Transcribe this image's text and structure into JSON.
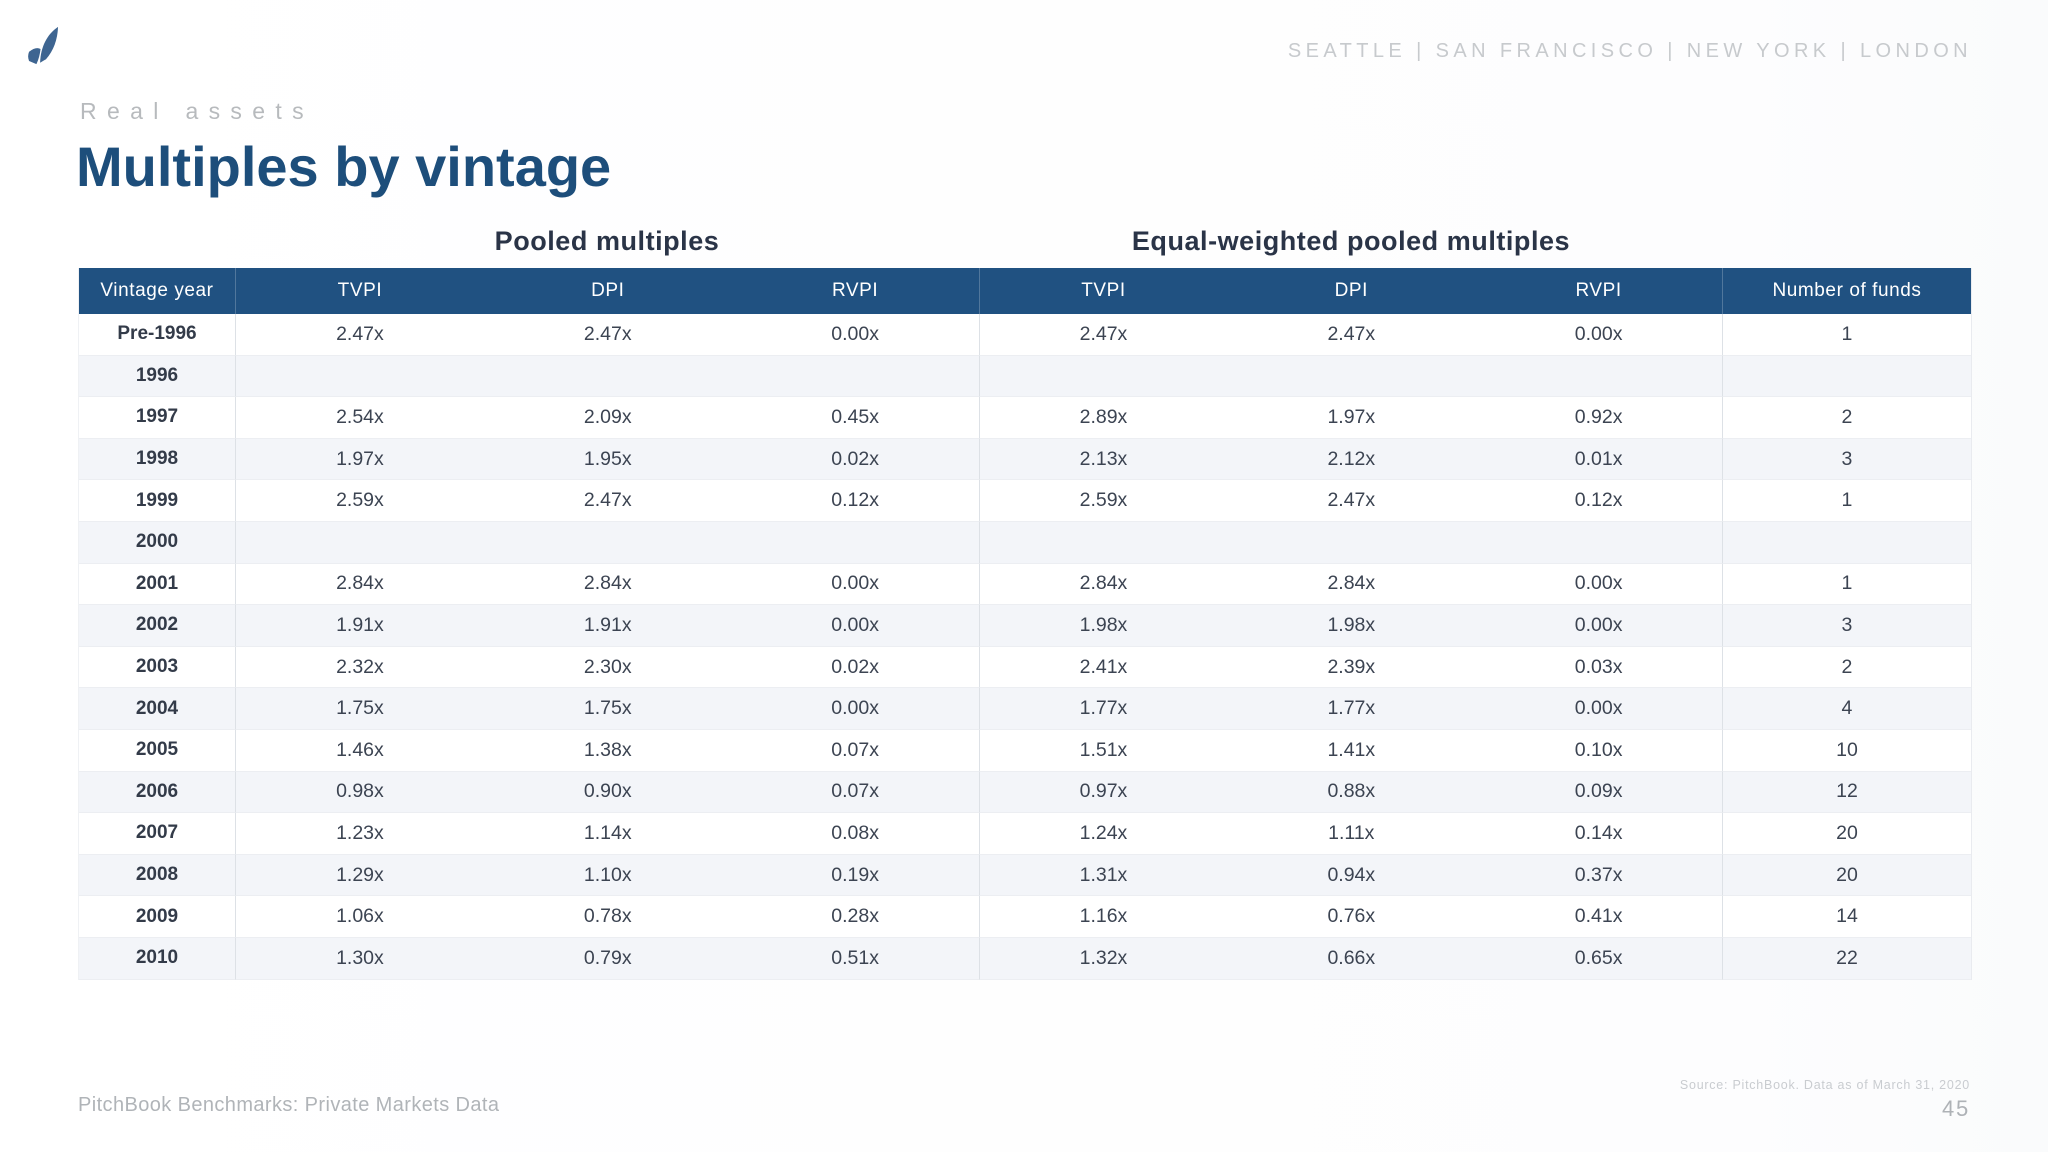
{
  "brand": {
    "logo_icon": "pitchbook-sail-logo",
    "locations": "SEATTLE  |  SAN FRANCISCO  |  NEW YORK  |  LONDON"
  },
  "header": {
    "eyebrow": "Real assets",
    "title": "Multiples by vintage"
  },
  "table": {
    "group_headers": {
      "pooled": "Pooled multiples",
      "equal_weighted": "Equal-weighted pooled multiples"
    },
    "columns": [
      "Vintage year",
      "TVPI",
      "DPI",
      "RVPI",
      "TVPI",
      "DPI",
      "RVPI",
      "Number of funds"
    ],
    "rows": [
      [
        "Pre-1996",
        "2.47x",
        "2.47x",
        "0.00x",
        "2.47x",
        "2.47x",
        "0.00x",
        "1"
      ],
      [
        "1996",
        "",
        "",
        "",
        "",
        "",
        "",
        ""
      ],
      [
        "1997",
        "2.54x",
        "2.09x",
        "0.45x",
        "2.89x",
        "1.97x",
        "0.92x",
        "2"
      ],
      [
        "1998",
        "1.97x",
        "1.95x",
        "0.02x",
        "2.13x",
        "2.12x",
        "0.01x",
        "3"
      ],
      [
        "1999",
        "2.59x",
        "2.47x",
        "0.12x",
        "2.59x",
        "2.47x",
        "0.12x",
        "1"
      ],
      [
        "2000",
        "",
        "",
        "",
        "",
        "",
        "",
        ""
      ],
      [
        "2001",
        "2.84x",
        "2.84x",
        "0.00x",
        "2.84x",
        "2.84x",
        "0.00x",
        "1"
      ],
      [
        "2002",
        "1.91x",
        "1.91x",
        "0.00x",
        "1.98x",
        "1.98x",
        "0.00x",
        "3"
      ],
      [
        "2003",
        "2.32x",
        "2.30x",
        "0.02x",
        "2.41x",
        "2.39x",
        "0.03x",
        "2"
      ],
      [
        "2004",
        "1.75x",
        "1.75x",
        "0.00x",
        "1.77x",
        "1.77x",
        "0.00x",
        "4"
      ],
      [
        "2005",
        "1.46x",
        "1.38x",
        "0.07x",
        "1.51x",
        "1.41x",
        "0.10x",
        "10"
      ],
      [
        "2006",
        "0.98x",
        "0.90x",
        "0.07x",
        "0.97x",
        "0.88x",
        "0.09x",
        "12"
      ],
      [
        "2007",
        "1.23x",
        "1.14x",
        "0.08x",
        "1.24x",
        "1.11x",
        "0.14x",
        "20"
      ],
      [
        "2008",
        "1.29x",
        "1.10x",
        "0.19x",
        "1.31x",
        "0.94x",
        "0.37x",
        "20"
      ],
      [
        "2009",
        "1.06x",
        "0.78x",
        "0.28x",
        "1.16x",
        "0.76x",
        "0.41x",
        "14"
      ],
      [
        "2010",
        "1.30x",
        "0.79x",
        "0.51x",
        "1.32x",
        "0.66x",
        "0.65x",
        "22"
      ]
    ]
  },
  "footer": {
    "left_text": "PitchBook Benchmarks: Private Markets Data",
    "source_text": "Source: PitchBook. Data as of March 31, 2020",
    "page_number": "45"
  },
  "colors": {
    "header_bar": "#205181",
    "title_blue": "#1d4e7b",
    "logo_blue": "#3e6591",
    "row_alt": "#f3f5f9"
  }
}
